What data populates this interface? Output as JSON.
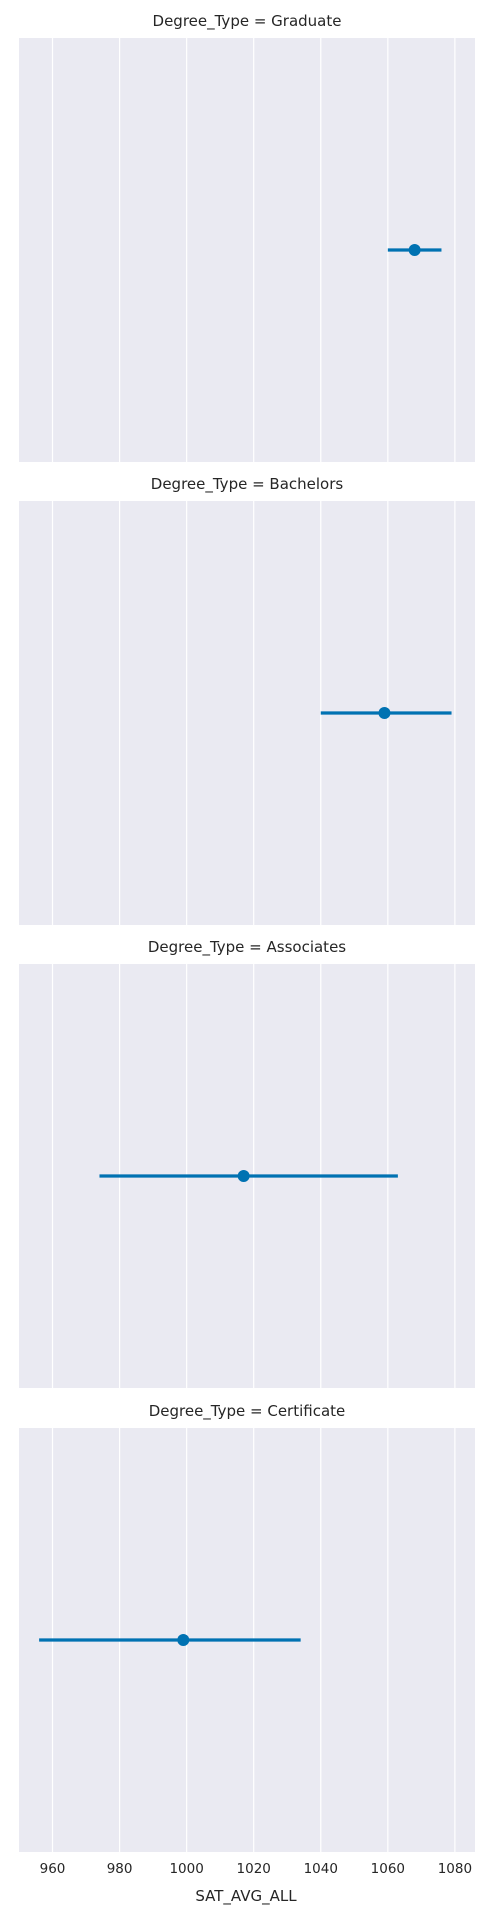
{
  "chart_data": {
    "type": "pointplot",
    "xlabel": "SAT_AVG_ALL",
    "xlim": [
      950,
      1086
    ],
    "xticks": [
      960,
      980,
      1000,
      1020,
      1040,
      1060,
      1080
    ],
    "grid": true,
    "colors": {
      "panel_bg": "#eaeaf2",
      "grid": "#ffffff",
      "series": "#0072b2",
      "text": "#262626"
    },
    "panels": [
      {
        "title": "Degree_Type = Graduate",
        "estimate": 1068,
        "ci": [
          1060,
          1076
        ]
      },
      {
        "title": "Degree_Type = Bachelors",
        "estimate": 1059,
        "ci": [
          1040,
          1079
        ]
      },
      {
        "title": "Degree_Type = Associates",
        "estimate": 1017,
        "ci": [
          974,
          1063
        ]
      },
      {
        "title": "Degree_Type = Certificate",
        "estimate": 999,
        "ci": [
          956,
          1034
        ]
      }
    ]
  }
}
